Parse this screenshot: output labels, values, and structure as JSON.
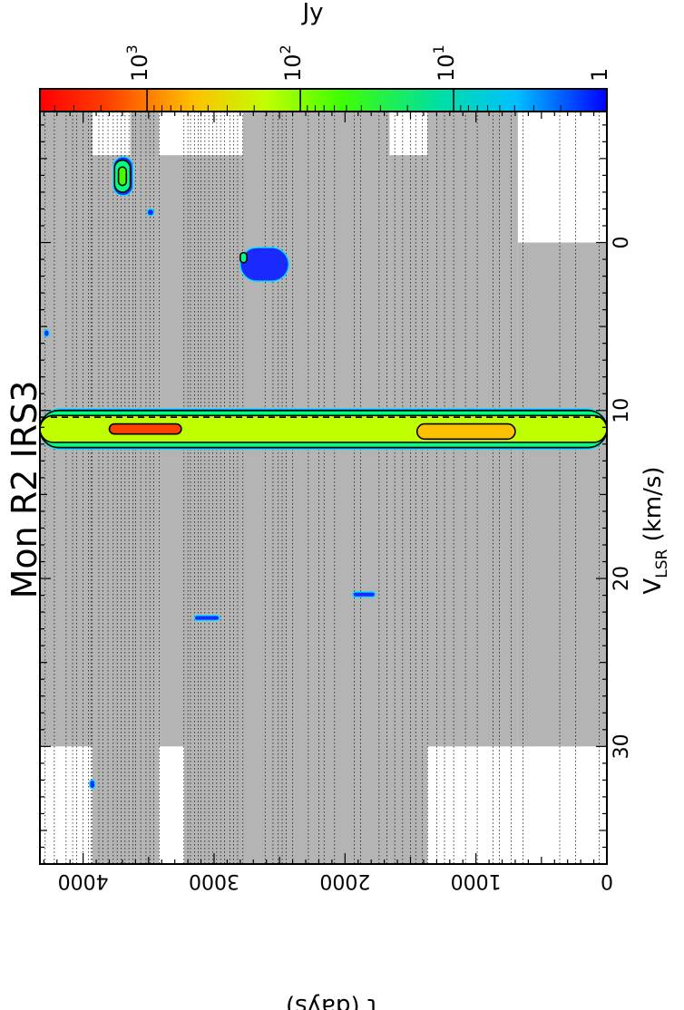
{
  "chart_data": {
    "type": "heatmap",
    "title": "Mon R2 IRS3",
    "xlabel": "V",
    "xlabel_sub": "LSR",
    "xlabel_unit": " (km/s)",
    "ylabel": "t (days)",
    "colorbar_label": "Jy",
    "x_ticks": [
      {
        "value": 0,
        "label": "0"
      },
      {
        "value": 10,
        "label": "10"
      },
      {
        "value": 20,
        "label": "20"
      },
      {
        "value": 30,
        "label": "30"
      }
    ],
    "y_ticks": [
      {
        "value": 0,
        "label": "0"
      },
      {
        "value": 1000,
        "label": "1000"
      },
      {
        "value": 2000,
        "label": "2000"
      },
      {
        "value": 3000,
        "label": "3000"
      },
      {
        "value": 4000,
        "label": "4000"
      }
    ],
    "colorbar_ticks": [
      {
        "value": 1000,
        "base": "10",
        "exp": "3"
      },
      {
        "value": 100,
        "base": "10",
        "exp": "2"
      },
      {
        "value": 10,
        "base": "10",
        "exp": "1"
      },
      {
        "value": 1,
        "base": "1",
        "exp": ""
      }
    ],
    "xlim": [
      -7.8,
      37
    ],
    "ylim": [
      0,
      4330
    ],
    "colorbar_range": [
      1,
      5000
    ],
    "colorbar_scale": "log",
    "dashed_reference_velocity": 10.4,
    "grid": true,
    "observed_area_fill": "#b4b4b4",
    "colormap": [
      "#0000ff",
      "#00e0ff",
      "#00ff80",
      "#40ff00",
      "#c0ff00",
      "#ffc000",
      "#ff4000",
      "#ff0000"
    ],
    "observation_epochs": [
      4290,
      4220,
      4130,
      4080,
      4050,
      4000,
      3960,
      3940,
      3930,
      3880,
      3850,
      3810,
      3770,
      3740,
      3710,
      3680,
      3650,
      3620,
      3600,
      3560,
      3520,
      3490,
      3460,
      3420,
      3230,
      3200,
      3180,
      3150,
      3120,
      3100,
      3070,
      3040,
      3010,
      2980,
      2950,
      2920,
      2880,
      2850,
      2820,
      2780,
      2610,
      2550,
      2510,
      2480,
      2450,
      2400,
      2280,
      2200,
      2160,
      2080,
      1930,
      1880,
      1740,
      1680,
      1620,
      1560,
      1500,
      1460,
      1410,
      1370,
      1300,
      1240,
      1170,
      1080,
      990,
      870,
      820,
      730,
      640,
      360,
      240,
      60
    ],
    "observed_velocity_blocks": [
      {
        "t_min": 3930,
        "t_max": 4330,
        "v_min": -7.8,
        "v_max": 30.0
      },
      {
        "t_min": 3640,
        "t_max": 3930,
        "v_min": -5.2,
        "v_max": 37.0
      },
      {
        "t_min": 3420,
        "t_max": 3640,
        "v_min": -7.8,
        "v_max": 37.0
      },
      {
        "t_min": 2780,
        "t_max": 3420,
        "v_min": -5.2,
        "v_max": 30.0
      },
      {
        "t_min": 2780,
        "t_max": 3230,
        "v_min": 30.0,
        "v_max": 37.0
      },
      {
        "t_min": 1660,
        "t_max": 2780,
        "v_min": -7.8,
        "v_max": 37.0
      },
      {
        "t_min": 1370,
        "t_max": 1660,
        "v_min": -5.2,
        "v_max": 37.0
      },
      {
        "t_min": 1370,
        "t_max": 1800,
        "v_min": 30.0,
        "v_max": 35.5
      },
      {
        "t_min": 680,
        "t_max": 1370,
        "v_min": -7.8,
        "v_max": 30.0
      },
      {
        "t_min": 0,
        "t_max": 680,
        "v_min": 0.0,
        "v_max": 30.0
      }
    ],
    "emission_features": [
      {
        "t_min": 0,
        "t_max": 4330,
        "v_min": 9.9,
        "v_max": 12.3,
        "peak_jy": 3000,
        "contours": [
          {
            "t_min": 0,
            "t_max": 4330,
            "v_min": 10.0,
            "v_max": 12.2,
            "level_jy": 10
          },
          {
            "t_min": 0,
            "t_max": 4330,
            "v_min": 10.3,
            "v_max": 11.9,
            "level_jy": 100
          },
          {
            "t_min": 700,
            "t_max": 1450,
            "v_min": 10.8,
            "v_max": 11.7,
            "level_jy": 500
          },
          {
            "t_min": 3250,
            "t_max": 3800,
            "v_min": 10.8,
            "v_max": 11.4,
            "level_jy": 1000
          }
        ]
      },
      {
        "t_min": 3620,
        "t_max": 3770,
        "v_min": -5.1,
        "v_max": -2.8,
        "peak_jy": 40,
        "contours": [
          {
            "t_min": 3640,
            "t_max": 3760,
            "v_min": -4.9,
            "v_max": -3.0,
            "level_jy": 10
          },
          {
            "t_min": 3670,
            "t_max": 3730,
            "v_min": -4.5,
            "v_max": -3.4,
            "level_jy": 30
          }
        ]
      },
      {
        "t_min": 2430,
        "t_max": 2800,
        "v_min": 0.3,
        "v_max": 2.3,
        "peak_jy": 20,
        "contours": [
          {
            "t_min": 2750,
            "t_max": 2800,
            "v_min": 0.6,
            "v_max": 1.2,
            "level_jy": 10
          }
        ]
      },
      {
        "t_min": 2960,
        "t_max": 3150,
        "v_min": 22.2,
        "v_max": 22.5,
        "peak_jy": 2,
        "contours": []
      },
      {
        "t_min": 1770,
        "t_max": 1940,
        "v_min": 20.8,
        "v_max": 21.1,
        "peak_jy": 2,
        "contours": []
      },
      {
        "t_min": 3910,
        "t_max": 3950,
        "v_min": 32.0,
        "v_max": 32.5,
        "peak_jy": 2,
        "contours": []
      },
      {
        "t_min": 3460,
        "t_max": 3510,
        "v_min": -2.0,
        "v_max": -1.6,
        "peak_jy": 2,
        "contours": []
      },
      {
        "t_min": 4260,
        "t_max": 4300,
        "v_min": 5.2,
        "v_max": 5.6,
        "peak_jy": 2,
        "contours": []
      }
    ]
  }
}
